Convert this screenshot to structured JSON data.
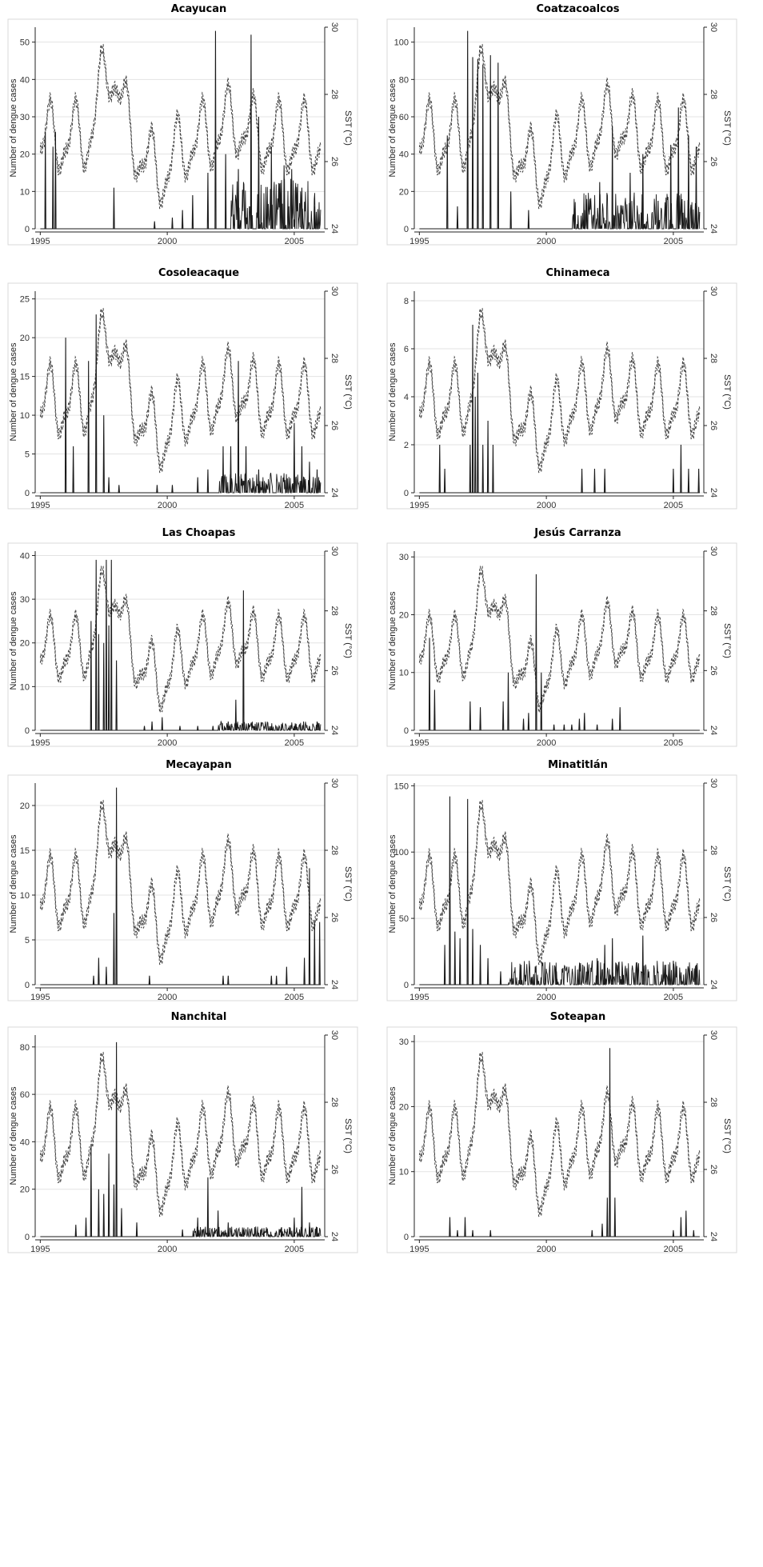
{
  "figure": {
    "x_axis_label": "",
    "left_axis_label": "Number of dengue cases",
    "right_axis_label": "SST (°C)"
  },
  "colors": {
    "cases": "#1a1a1a",
    "sst": "#444444",
    "grid": "#e3e3e3",
    "frame": "#d9d9d9"
  },
  "chart_data": [
    {
      "type": "line",
      "title": "Acayucan",
      "xlabel": "",
      "ylabel": "Number of dengue cases",
      "y2label": "SST (°C)",
      "x_ticks": [
        1995,
        2000,
        2005
      ],
      "y_ticks": [
        0,
        10,
        20,
        30,
        40,
        50
      ],
      "y2_ticks": [
        24,
        26,
        28,
        30
      ],
      "xlim": [
        1994.8,
        2006.2
      ],
      "ylim": [
        0,
        54
      ],
      "y2lim": [
        24,
        30
      ],
      "grid": true,
      "sst_scale": 0.85,
      "cases_peaks": [
        [
          1995.2,
          26
        ],
        [
          1995.5,
          22
        ],
        [
          1995.6,
          26
        ],
        [
          1997.9,
          11
        ],
        [
          1999.5,
          2
        ],
        [
          2000.2,
          3
        ],
        [
          2000.6,
          5
        ],
        [
          2001.0,
          9
        ],
        [
          2001.6,
          15
        ],
        [
          2001.9,
          53
        ],
        [
          2002.3,
          20
        ],
        [
          2002.8,
          16
        ],
        [
          2003.3,
          52
        ],
        [
          2003.6,
          30
        ],
        [
          2004.1,
          22
        ],
        [
          2004.6,
          17
        ],
        [
          2004.9,
          16
        ],
        [
          2005.3,
          11
        ],
        [
          2005.8,
          6
        ]
      ],
      "noise": 0.25,
      "noise_start": 2002.5
    },
    {
      "type": "line",
      "title": "Coatzacoalcos",
      "xlabel": "",
      "ylabel": "Number of dengue cases",
      "y2label": "SST (°C)",
      "x_ticks": [
        1995,
        2000,
        2005
      ],
      "y_ticks": [
        0,
        20,
        40,
        60,
        80,
        100
      ],
      "y2_ticks": [
        24,
        26,
        28,
        30
      ],
      "xlim": [
        1994.8,
        2006.2
      ],
      "ylim": [
        0,
        108
      ],
      "y2lim": [
        24,
        30
      ],
      "grid": true,
      "sst_scale": 0.85,
      "cases_peaks": [
        [
          1996.1,
          50
        ],
        [
          1996.5,
          12
        ],
        [
          1996.9,
          106
        ],
        [
          1997.1,
          92
        ],
        [
          1997.3,
          91
        ],
        [
          1997.5,
          88
        ],
        [
          1997.8,
          93
        ],
        [
          1998.1,
          89
        ],
        [
          1998.6,
          20
        ],
        [
          1999.3,
          10
        ],
        [
          2001.5,
          10
        ],
        [
          2002.1,
          25
        ],
        [
          2002.6,
          55
        ],
        [
          2003.3,
          30
        ],
        [
          2003.8,
          40
        ],
        [
          2004.4,
          15
        ],
        [
          2004.9,
          45
        ],
        [
          2005.2,
          65
        ],
        [
          2005.6,
          50
        ],
        [
          2005.9,
          44
        ]
      ],
      "noise": 0.18,
      "noise_start": 2001.0
    },
    {
      "type": "line",
      "title": "Cosoleacaque",
      "xlabel": "",
      "ylabel": "Number of dengue cases",
      "y2label": "SST (°C)",
      "x_ticks": [
        1995,
        2000,
        2005
      ],
      "y_ticks": [
        0,
        5,
        10,
        15,
        20,
        25
      ],
      "y2_ticks": [
        24,
        26,
        28,
        30
      ],
      "xlim": [
        1994.8,
        2006.2
      ],
      "ylim": [
        0,
        26
      ],
      "y2lim": [
        24,
        30
      ],
      "grid": true,
      "sst_scale": 0.85,
      "cases_peaks": [
        [
          1996.0,
          20
        ],
        [
          1996.3,
          6
        ],
        [
          1996.9,
          17
        ],
        [
          1997.2,
          23
        ],
        [
          1997.5,
          10
        ],
        [
          1997.7,
          2
        ],
        [
          1998.1,
          1
        ],
        [
          1999.6,
          1
        ],
        [
          2000.2,
          1
        ],
        [
          2001.2,
          2
        ],
        [
          2001.6,
          3
        ],
        [
          2002.2,
          6
        ],
        [
          2002.5,
          6
        ],
        [
          2002.8,
          17
        ],
        [
          2003.1,
          6
        ],
        [
          2003.6,
          3
        ],
        [
          2005.0,
          9
        ],
        [
          2005.3,
          6
        ],
        [
          2005.6,
          4
        ],
        [
          2005.9,
          3
        ]
      ],
      "noise": 0.1,
      "noise_start": 2002.0
    },
    {
      "type": "line",
      "title": "Chinameca",
      "xlabel": "",
      "ylabel": "Number of dengue cases",
      "y2label": "SST (°C)",
      "x_ticks": [
        1995,
        2000,
        2005
      ],
      "y_ticks": [
        0,
        2,
        4,
        6,
        8
      ],
      "y2_ticks": [
        24,
        26,
        28,
        30
      ],
      "xlim": [
        1994.8,
        2006.2
      ],
      "ylim": [
        0,
        8.4
      ],
      "y2lim": [
        24,
        30
      ],
      "grid": true,
      "sst_scale": 0.85,
      "cases_peaks": [
        [
          1995.8,
          2
        ],
        [
          1996.0,
          1
        ],
        [
          1997.0,
          2
        ],
        [
          1997.1,
          7
        ],
        [
          1997.2,
          4
        ],
        [
          1997.3,
          5
        ],
        [
          1997.5,
          2
        ],
        [
          1997.7,
          3
        ],
        [
          1997.9,
          2
        ],
        [
          2001.4,
          1
        ],
        [
          2001.9,
          1
        ],
        [
          2002.3,
          1
        ],
        [
          2005.0,
          1
        ],
        [
          2005.3,
          2
        ],
        [
          2005.6,
          1
        ],
        [
          2006.0,
          1
        ]
      ],
      "noise": 0,
      "noise_start": 2007
    },
    {
      "type": "line",
      "title": "Las Choapas",
      "xlabel": "",
      "ylabel": "Number of dengue cases",
      "y2label": "SST (°C)",
      "x_ticks": [
        1995,
        2000,
        2005
      ],
      "y_ticks": [
        0,
        10,
        20,
        30,
        40
      ],
      "y2_ticks": [
        24,
        26,
        28,
        30
      ],
      "xlim": [
        1994.8,
        2006.2
      ],
      "ylim": [
        0,
        41
      ],
      "y2lim": [
        24,
        30
      ],
      "grid": true,
      "sst_scale": 0.85,
      "cases_peaks": [
        [
          1997.0,
          25
        ],
        [
          1997.2,
          39
        ],
        [
          1997.3,
          22
        ],
        [
          1997.5,
          20
        ],
        [
          1997.6,
          39
        ],
        [
          1997.7,
          24
        ],
        [
          1997.8,
          39
        ],
        [
          1998.0,
          16
        ],
        [
          1999.1,
          1
        ],
        [
          1999.4,
          2
        ],
        [
          1999.8,
          3
        ],
        [
          2000.5,
          1
        ],
        [
          2001.2,
          1
        ],
        [
          2001.8,
          1
        ],
        [
          2002.4,
          2
        ],
        [
          2002.7,
          7
        ],
        [
          2003.0,
          32
        ],
        [
          2004.1,
          1
        ],
        [
          2005.0,
          1
        ],
        [
          2005.6,
          1
        ],
        [
          2005.9,
          2
        ]
      ],
      "noise": 0.05,
      "noise_start": 2002.0
    },
    {
      "type": "line",
      "title": "Jesús Carranza",
      "xlabel": "",
      "ylabel": "Number of dengue cases",
      "y2label": "SST (°C)",
      "x_ticks": [
        1995,
        2000,
        2005
      ],
      "y_ticks": [
        0,
        10,
        20,
        30
      ],
      "y2_ticks": [
        24,
        26,
        28,
        30
      ],
      "xlim": [
        1994.8,
        2006.2
      ],
      "ylim": [
        0,
        31
      ],
      "y2lim": [
        24,
        30
      ],
      "grid": true,
      "sst_scale": 0.85,
      "cases_peaks": [
        [
          1995.4,
          16
        ],
        [
          1995.6,
          7
        ],
        [
          1997.0,
          5
        ],
        [
          1997.4,
          4
        ],
        [
          1998.3,
          5
        ],
        [
          1998.5,
          10
        ],
        [
          1999.1,
          2
        ],
        [
          1999.3,
          3
        ],
        [
          1999.6,
          27
        ],
        [
          1999.8,
          10
        ],
        [
          2000.3,
          1
        ],
        [
          2000.7,
          1
        ],
        [
          2001.0,
          1
        ],
        [
          2001.3,
          2
        ],
        [
          2001.5,
          3
        ],
        [
          2002.0,
          1
        ],
        [
          2002.6,
          2
        ],
        [
          2002.9,
          4
        ]
      ],
      "noise": 0,
      "noise_start": 2007
    },
    {
      "type": "line",
      "title": "Mecayapan",
      "xlabel": "",
      "ylabel": "Number of dengue cases",
      "y2label": "SST (°C)",
      "x_ticks": [
        1995,
        2000,
        2005
      ],
      "y_ticks": [
        0,
        5,
        10,
        15,
        20
      ],
      "y2_ticks": [
        24,
        26,
        28,
        30
      ],
      "xlim": [
        1994.8,
        2006.2
      ],
      "ylim": [
        0,
        22.5
      ],
      "y2lim": [
        24,
        30
      ],
      "grid": true,
      "sst_scale": 0.85,
      "cases_peaks": [
        [
          1997.1,
          1
        ],
        [
          1997.3,
          3
        ],
        [
          1997.6,
          2
        ],
        [
          1997.9,
          8
        ],
        [
          1998.0,
          22
        ],
        [
          1999.3,
          1
        ],
        [
          2002.2,
          1
        ],
        [
          2002.4,
          1
        ],
        [
          2004.1,
          1
        ],
        [
          2004.3,
          1
        ],
        [
          2004.7,
          2
        ],
        [
          2005.4,
          3
        ],
        [
          2005.6,
          13
        ],
        [
          2005.8,
          7
        ],
        [
          2006.0,
          7
        ]
      ],
      "noise": 0,
      "noise_start": 2007
    },
    {
      "type": "line",
      "title": "Minatitlán",
      "xlabel": "",
      "ylabel": "Number of dengue cases",
      "y2label": "SST (°C)",
      "x_ticks": [
        1995,
        2000,
        2005
      ],
      "y_ticks": [
        0,
        50,
        100,
        150
      ],
      "y2_ticks": [
        24,
        26,
        28,
        30
      ],
      "xlim": [
        1994.8,
        2006.2
      ],
      "ylim": [
        0,
        152
      ],
      "y2lim": [
        24,
        30
      ],
      "grid": true,
      "sst_scale": 0.85,
      "cases_peaks": [
        [
          1996.0,
          30
        ],
        [
          1996.2,
          142
        ],
        [
          1996.4,
          40
        ],
        [
          1996.6,
          35
        ],
        [
          1996.9,
          140
        ],
        [
          1997.1,
          42
        ],
        [
          1997.4,
          30
        ],
        [
          1997.7,
          20
        ],
        [
          1998.2,
          10
        ],
        [
          1999.0,
          15
        ],
        [
          1999.5,
          8
        ],
        [
          2000.4,
          10
        ],
        [
          2001.3,
          12
        ],
        [
          2002.0,
          20
        ],
        [
          2002.3,
          30
        ],
        [
          2002.6,
          35
        ],
        [
          2003.0,
          10
        ],
        [
          2003.8,
          37
        ],
        [
          2004.7,
          15
        ],
        [
          2005.0,
          18
        ],
        [
          2005.5,
          12
        ],
        [
          2005.9,
          15
        ]
      ],
      "noise": 0.12,
      "noise_start": 1998.5
    },
    {
      "type": "line",
      "title": "Nanchital",
      "xlabel": "",
      "ylabel": "Number of dengue cases",
      "y2label": "SST (°C)",
      "x_ticks": [
        1995,
        2000,
        2005
      ],
      "y_ticks": [
        0,
        20,
        40,
        60,
        80
      ],
      "y2_ticks": [
        24,
        26,
        28,
        30
      ],
      "xlim": [
        1994.8,
        2006.2
      ],
      "ylim": [
        0,
        85
      ],
      "y2lim": [
        24,
        30
      ],
      "grid": true,
      "sst_scale": 0.85,
      "cases_peaks": [
        [
          1996.4,
          5
        ],
        [
          1996.8,
          8
        ],
        [
          1997.0,
          38
        ],
        [
          1997.3,
          20
        ],
        [
          1997.5,
          18
        ],
        [
          1997.7,
          35
        ],
        [
          1997.9,
          22
        ],
        [
          1998.0,
          82
        ],
        [
          1998.2,
          12
        ],
        [
          1998.8,
          6
        ],
        [
          2000.6,
          3
        ],
        [
          2001.2,
          8
        ],
        [
          2001.6,
          25
        ],
        [
          2002.0,
          11
        ],
        [
          2002.4,
          6
        ],
        [
          2003.0,
          3
        ],
        [
          2003.8,
          2
        ],
        [
          2004.5,
          4
        ],
        [
          2005.0,
          8
        ],
        [
          2005.3,
          21
        ],
        [
          2005.6,
          6
        ],
        [
          2005.9,
          4
        ]
      ],
      "noise": 0.05,
      "noise_start": 2001.0
    },
    {
      "type": "line",
      "title": "Soteapan",
      "xlabel": "",
      "ylabel": "Number of dengue cases",
      "y2label": "SST (°C)",
      "x_ticks": [
        1995,
        2000,
        2005
      ],
      "y_ticks": [
        0,
        10,
        20,
        30
      ],
      "y2_ticks": [
        24,
        26,
        28,
        30
      ],
      "xlim": [
        1994.8,
        2006.2
      ],
      "ylim": [
        0,
        31
      ],
      "y2lim": [
        24,
        30
      ],
      "grid": true,
      "sst_scale": 0.85,
      "cases_peaks": [
        [
          1996.2,
          3
        ],
        [
          1996.5,
          1
        ],
        [
          1996.8,
          3
        ],
        [
          1997.1,
          1
        ],
        [
          1997.8,
          1
        ],
        [
          2001.8,
          1
        ],
        [
          2002.2,
          2
        ],
        [
          2002.4,
          6
        ],
        [
          2002.5,
          29
        ],
        [
          2002.7,
          6
        ],
        [
          2005.0,
          1
        ],
        [
          2005.3,
          3
        ],
        [
          2005.5,
          4
        ],
        [
          2005.8,
          1
        ]
      ],
      "noise": 0,
      "noise_start": 2007
    }
  ]
}
